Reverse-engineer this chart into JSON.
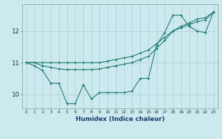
{
  "title": "",
  "xlabel": "Humidex (Indice chaleur)",
  "bg_color": "#cce9ee",
  "grid_color": "#b0d4d8",
  "line_color": "#1a7a6e",
  "x_ticks": [
    0,
    1,
    2,
    3,
    4,
    5,
    6,
    7,
    8,
    9,
    10,
    11,
    12,
    13,
    14,
    15,
    16,
    17,
    18,
    19,
    20,
    21,
    22,
    23
  ],
  "y_ticks": [
    10,
    11,
    12
  ],
  "ylim": [
    9.55,
    12.85
  ],
  "xlim": [
    -0.5,
    23.5
  ],
  "line1_y": [
    11.0,
    10.9,
    10.75,
    10.35,
    10.35,
    9.7,
    9.7,
    10.3,
    9.85,
    10.05,
    10.05,
    10.05,
    10.05,
    10.1,
    10.5,
    10.5,
    11.55,
    11.95,
    12.5,
    12.5,
    12.15,
    12.0,
    11.95,
    12.6
  ],
  "line2_y": [
    11.0,
    11.0,
    11.0,
    11.0,
    11.0,
    11.0,
    11.0,
    11.0,
    11.0,
    11.0,
    11.05,
    11.1,
    11.15,
    11.2,
    11.3,
    11.4,
    11.6,
    11.8,
    12.0,
    12.1,
    12.2,
    12.3,
    12.35,
    12.6
  ],
  "line3_y": [
    11.0,
    11.0,
    10.9,
    10.85,
    10.8,
    10.78,
    10.78,
    10.78,
    10.78,
    10.8,
    10.85,
    10.9,
    10.95,
    11.0,
    11.1,
    11.2,
    11.45,
    11.7,
    12.0,
    12.15,
    12.25,
    12.38,
    12.42,
    12.6
  ]
}
